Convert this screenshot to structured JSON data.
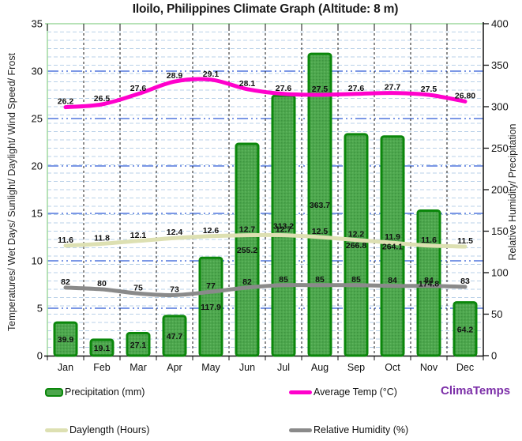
{
  "title": "Iloilo, Philippines Climate Graph (Altitude: 8 m)",
  "axes": {
    "left_title": "Temperatures/ Wet Days/ Sunlight/ Daylight/ Wind Speed/ Frost",
    "right_title": "Relative Humidity/ Precipitation",
    "left_ticks": [
      0,
      5,
      10,
      15,
      20,
      25,
      30,
      35
    ],
    "right_ticks": [
      0,
      50,
      100,
      150,
      200,
      250,
      300,
      350,
      400
    ]
  },
  "watermark": {
    "text": "ClimaTemps",
    "color": "#7c2fa8"
  },
  "legend": {
    "items": [
      {
        "label": "Precipitation (mm)",
        "swatch": "bar",
        "color": "#4ca64c"
      },
      {
        "label": "Average Temp (°C)",
        "swatch": "line",
        "color": "#ff00cc"
      },
      {
        "label": "Daylength (Hours)",
        "swatch": "line",
        "color": "#dde0b2"
      },
      {
        "label": "Relative Humidity (%)",
        "swatch": "line",
        "color": "#8a8a8a"
      }
    ]
  },
  "chart_data": {
    "type": "bar",
    "title": "Iloilo, Philippines Climate Graph (Altitude: 8 m)",
    "categories": [
      "Jan",
      "Feb",
      "Mar",
      "Apr",
      "May",
      "Jun",
      "Jul",
      "Aug",
      "Sep",
      "Oct",
      "Nov",
      "Dec"
    ],
    "left_axis": {
      "min": 0,
      "max": 35,
      "step": 5
    },
    "right_axis": {
      "min": 0,
      "max": 400,
      "step": 50
    },
    "grid": {
      "h_light_step_right_axis": 10,
      "h_dark_step_left_axis": 5,
      "vertical": "month-boundaries"
    },
    "series": [
      {
        "name": "Precipitation (mm)",
        "kind": "bar",
        "axis": "right",
        "color": "#4ca64c",
        "border_color": "#0b870b",
        "values": [
          39.9,
          19.1,
          27.1,
          47.7,
          117.9,
          255.2,
          313.2,
          363.7,
          266.8,
          264.1,
          174.8,
          64.2
        ],
        "labels": [
          "39.9",
          "19.1",
          "27.1",
          "47.7",
          "117.9",
          "255.2",
          "313.2",
          "363.7",
          "266.8",
          "264.1",
          "174.8",
          "64.2"
        ]
      },
      {
        "name": "Average Temp (°C)",
        "kind": "line",
        "axis": "left",
        "color": "#ff00cc",
        "values": [
          26.2,
          26.5,
          27.6,
          28.9,
          29.1,
          28.1,
          27.6,
          27.5,
          27.6,
          27.7,
          27.5,
          26.8
        ],
        "labels": [
          "26.2",
          "26.5",
          "27.6",
          "28.9",
          "29.1",
          "28.1",
          "27.6",
          "27.5",
          "27.6",
          "27.7",
          "27.5",
          "26.80"
        ]
      },
      {
        "name": "Daylength (Hours)",
        "kind": "line",
        "axis": "left",
        "color": "#dde0b2",
        "values": [
          11.6,
          11.8,
          12.1,
          12.4,
          12.6,
          12.7,
          12.7,
          12.5,
          12.2,
          11.9,
          11.6,
          11.5
        ],
        "labels": [
          "11.6",
          "11.8",
          "12.1",
          "12.4",
          "12.6",
          "12.7",
          "12.7",
          "12.5",
          "12.2",
          "11.9",
          "11.6",
          "11.5"
        ]
      },
      {
        "name": "Relative Humidity (%)",
        "kind": "line",
        "axis": "right",
        "color": "#8a8a8a",
        "values": [
          82,
          80,
          75,
          73,
          77,
          82,
          85,
          85,
          85,
          84,
          84,
          83
        ],
        "labels": [
          "82",
          "80",
          "75",
          "73",
          "77",
          "82",
          "85",
          "85",
          "85",
          "84",
          "84",
          "83"
        ]
      }
    ]
  }
}
